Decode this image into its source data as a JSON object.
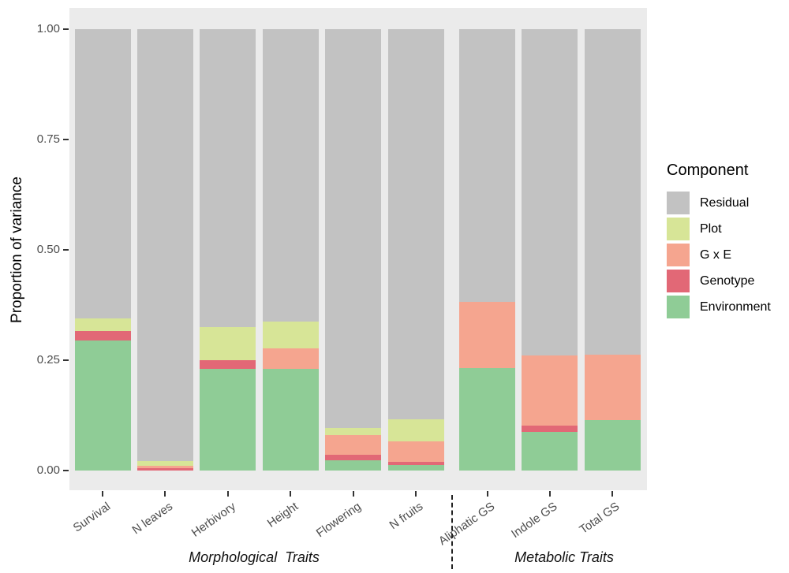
{
  "chart_data": {
    "type": "bar",
    "stacked": true,
    "title": "",
    "ylabel": "Proportion of variance",
    "xlabel": "",
    "ylim": [
      0,
      1
    ],
    "ytick_values": [
      1.0,
      0.75,
      0.5,
      0.25,
      0.0
    ],
    "grid": false,
    "panel_background": "#ebebeb",
    "categories": [
      "Survival",
      "N leaves",
      "Herbivory",
      "Height",
      "Flowering",
      "N fruits",
      "Aliphatic GS",
      "Indole GS",
      "Total GS"
    ],
    "series": [
      {
        "name": "Environment",
        "color": "#8fcc96",
        "values": [
          0.295,
          0.0,
          0.23,
          0.23,
          0.023,
          0.013,
          0.233,
          0.087,
          0.115
        ]
      },
      {
        "name": "Genotype",
        "color": "#e26876",
        "values": [
          0.022,
          0.005,
          0.02,
          0.0,
          0.012,
          0.007,
          0.0,
          0.015,
          0.0
        ]
      },
      {
        "name": "G x E",
        "color": "#f5a58f",
        "values": [
          0.0,
          0.006,
          0.0,
          0.046,
          0.046,
          0.046,
          0.15,
          0.158,
          0.148
        ]
      },
      {
        "name": "Plot",
        "color": "#d7e597",
        "values": [
          0.028,
          0.011,
          0.075,
          0.062,
          0.016,
          0.051,
          0.0,
          0.0,
          0.0
        ]
      },
      {
        "name": "Residual",
        "color": "#c2c2c2",
        "values": [
          0.655,
          0.978,
          0.675,
          0.662,
          0.903,
          0.883,
          0.617,
          0.74,
          0.737
        ]
      }
    ],
    "legend": {
      "title": "Component",
      "position": "right",
      "entries": [
        {
          "label": "Residual",
          "color": "#c2c2c2"
        },
        {
          "label": "Plot",
          "color": "#d7e597"
        },
        {
          "label": "G x E",
          "color": "#f5a58f"
        },
        {
          "label": "Genotype",
          "color": "#e26876"
        },
        {
          "label": "Environment",
          "color": "#8fcc96"
        }
      ]
    },
    "groups": [
      {
        "label": "Morphological  Traits",
        "span": [
          0,
          5
        ]
      },
      {
        "label": "Metabolic Traits",
        "span": [
          6,
          8
        ]
      }
    ]
  }
}
